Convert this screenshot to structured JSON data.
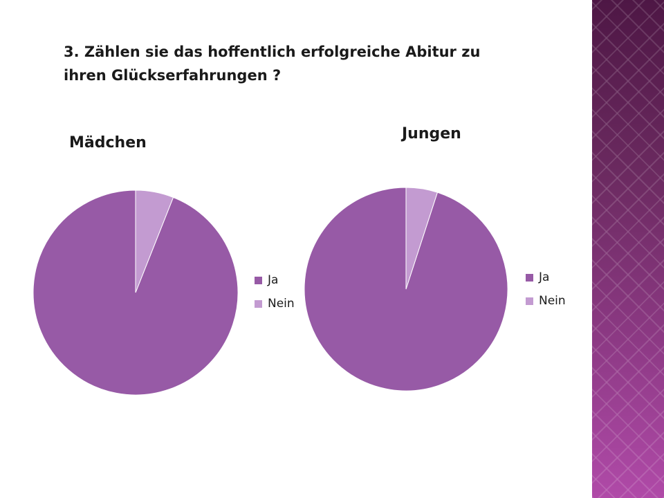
{
  "slide": {
    "title_line1": "3. Zählen sie das hoffentlich erfolgreiche Abitur zu",
    "title_line2": "ihren Glückserfahrungen ?"
  },
  "colors": {
    "ja": "#975aa6",
    "nein": "#c39bd1",
    "side_panel": "#7a2f70"
  },
  "chart_data": [
    {
      "type": "pie",
      "title": "Mädchen",
      "categories": [
        "Ja",
        "Nein"
      ],
      "values": [
        94,
        6
      ],
      "legend": "right"
    },
    {
      "type": "pie",
      "title": "Jungen",
      "categories": [
        "Ja",
        "Nein"
      ],
      "values": [
        95,
        5
      ],
      "legend": "right"
    }
  ]
}
